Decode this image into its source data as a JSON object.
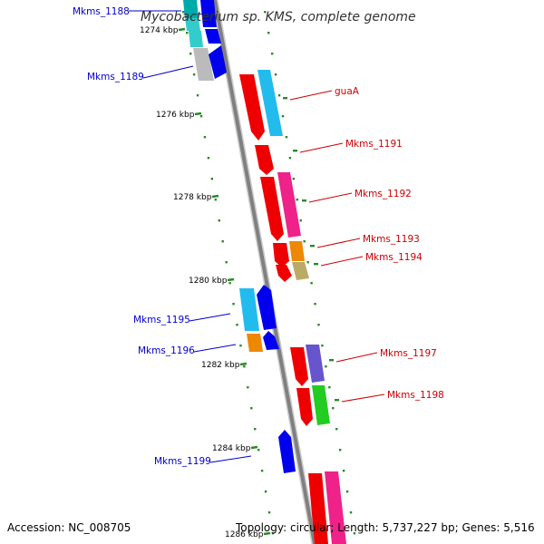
{
  "title": "Mycobacterium sp. KMS, complete genome",
  "accession": "Accession: NC_008705",
  "topology": "Topology: circular; Length: 5,737,227 bp; Genes: 5,516",
  "colors": {
    "backbone": "#888888",
    "tick": "#2a8a2a",
    "label_left": "#0000cc",
    "label_right": "#cc0000"
  },
  "kbp_labels": [
    "1274 kbp",
    "1276 kbp",
    "1278 kbp",
    "1280 kbp",
    "1282 kbp",
    "1284 kbp",
    "1286 kbp"
  ],
  "genes_left": [
    "Mkms_1188",
    "Mkms_1189",
    "Mkms_1195",
    "Mkms_1196",
    "Mkms_1199"
  ],
  "genes_right": [
    "guaA",
    "Mkms_1191",
    "Mkms_1192",
    "Mkms_1193",
    "Mkms_1194",
    "Mkms_1197",
    "Mkms_1198"
  ]
}
